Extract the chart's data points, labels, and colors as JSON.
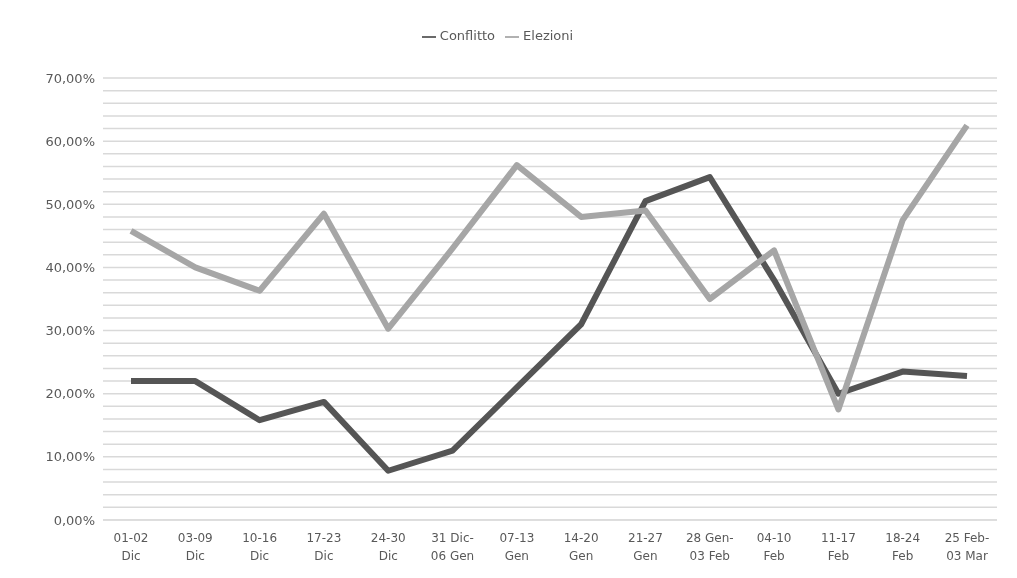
{
  "chart_data": {
    "type": "line",
    "categories": [
      "01-02\nDic",
      "03-09\nDic",
      "10-16\nDic",
      "17-23\nDic",
      "24-30\nDic",
      "31 Dic-\n06 Gen",
      "07-13\nGen",
      "14-20\nGen",
      "21-27\nGen",
      "28 Gen-\n03 Feb",
      "04-10\nFeb",
      "11-17\nFeb",
      "18-24\nFeb",
      "25 Feb-\n03 Mar"
    ],
    "series": [
      {
        "name": "Conflitto",
        "color": "#555555",
        "values": [
          22,
          22,
          15.8,
          18.7,
          7.8,
          11,
          21,
          31,
          50.5,
          54.3,
          38,
          20,
          23.5,
          22.8
        ]
      },
      {
        "name": "Elezioni",
        "color": "#a6a6a6",
        "values": [
          45.8,
          40,
          36.3,
          48.5,
          30.3,
          43,
          56.2,
          48,
          49,
          35,
          42.7,
          17.5,
          47.5,
          62.5
        ]
      }
    ],
    "ylim": [
      0,
      70
    ],
    "yticks": [
      {
        "value": 0,
        "label": "0,00%"
      },
      {
        "value": 2,
        "label": null
      },
      {
        "value": 4,
        "label": null
      },
      {
        "value": 6,
        "label": null
      },
      {
        "value": 8,
        "label": null
      },
      {
        "value": 10,
        "label": "10,00%"
      },
      {
        "value": 12,
        "label": null
      },
      {
        "value": 14,
        "label": null
      },
      {
        "value": 16,
        "label": null
      },
      {
        "value": 18,
        "label": null
      },
      {
        "value": 20,
        "label": "20,00%"
      },
      {
        "value": 22,
        "label": null
      },
      {
        "value": 24,
        "label": null
      },
      {
        "value": 26,
        "label": null
      },
      {
        "value": 28,
        "label": null
      },
      {
        "value": 30,
        "label": "30,00%"
      },
      {
        "value": 32,
        "label": null
      },
      {
        "value": 34,
        "label": null
      },
      {
        "value": 36,
        "label": null
      },
      {
        "value": 38,
        "label": null
      },
      {
        "value": 40,
        "label": "40,00%"
      },
      {
        "value": 42,
        "label": null
      },
      {
        "value": 44,
        "label": null
      },
      {
        "value": 46,
        "label": null
      },
      {
        "value": 48,
        "label": null
      },
      {
        "value": 50,
        "label": "50,00%"
      },
      {
        "value": 52,
        "label": null
      },
      {
        "value": 54,
        "label": null
      },
      {
        "value": 56,
        "label": null
      },
      {
        "value": 58,
        "label": null
      },
      {
        "value": 60,
        "label": "60,00%"
      },
      {
        "value": 62,
        "label": null
      },
      {
        "value": 64,
        "label": null
      },
      {
        "value": 66,
        "label": null
      },
      {
        "value": 68,
        "label": null
      },
      {
        "value": 70,
        "label": "70,00%"
      }
    ],
    "grid": "y",
    "legend": "top",
    "marker": "none",
    "line_style": "solid"
  }
}
